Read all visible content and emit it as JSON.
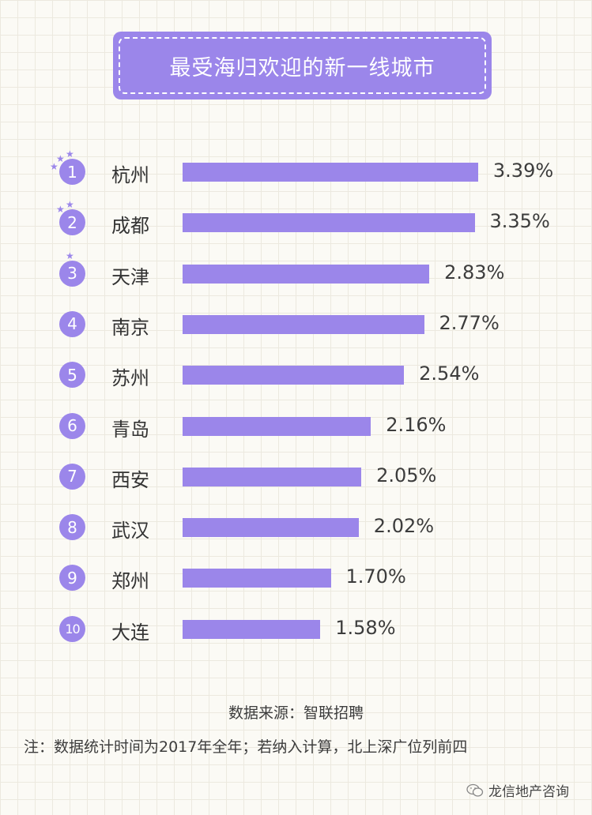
{
  "header": {
    "title": "最受海归欢迎的新一线城市"
  },
  "chart_data": {
    "type": "bar",
    "orientation": "horizontal",
    "title": "最受海归欢迎的新一线城市",
    "ranks": [
      "1",
      "2",
      "3",
      "4",
      "5",
      "6",
      "7",
      "8",
      "9",
      "10"
    ],
    "categories": [
      "杭州",
      "成都",
      "天津",
      "南京",
      "苏州",
      "青岛",
      "西安",
      "武汉",
      "郑州",
      "大连"
    ],
    "values": [
      3.39,
      3.35,
      2.83,
      2.77,
      2.54,
      2.16,
      2.05,
      2.02,
      1.7,
      1.58
    ],
    "value_labels": [
      "3.39%",
      "3.35%",
      "2.83%",
      "2.77%",
      "2.54%",
      "2.16%",
      "2.05%",
      "2.02%",
      "1.70%",
      "1.58%"
    ],
    "unit": "%",
    "bar_color": "#9b86ea",
    "grid": false
  },
  "footer": {
    "source": "数据来源：智联招聘",
    "note": "注：数据统计时间为2017年全年；若纳入计算，北上深广位列前四",
    "watermark": "龙信地产咨询"
  },
  "colors": {
    "accent": "#9b86ea",
    "background": "#fbfaf5",
    "text": "#3c3c3c"
  }
}
